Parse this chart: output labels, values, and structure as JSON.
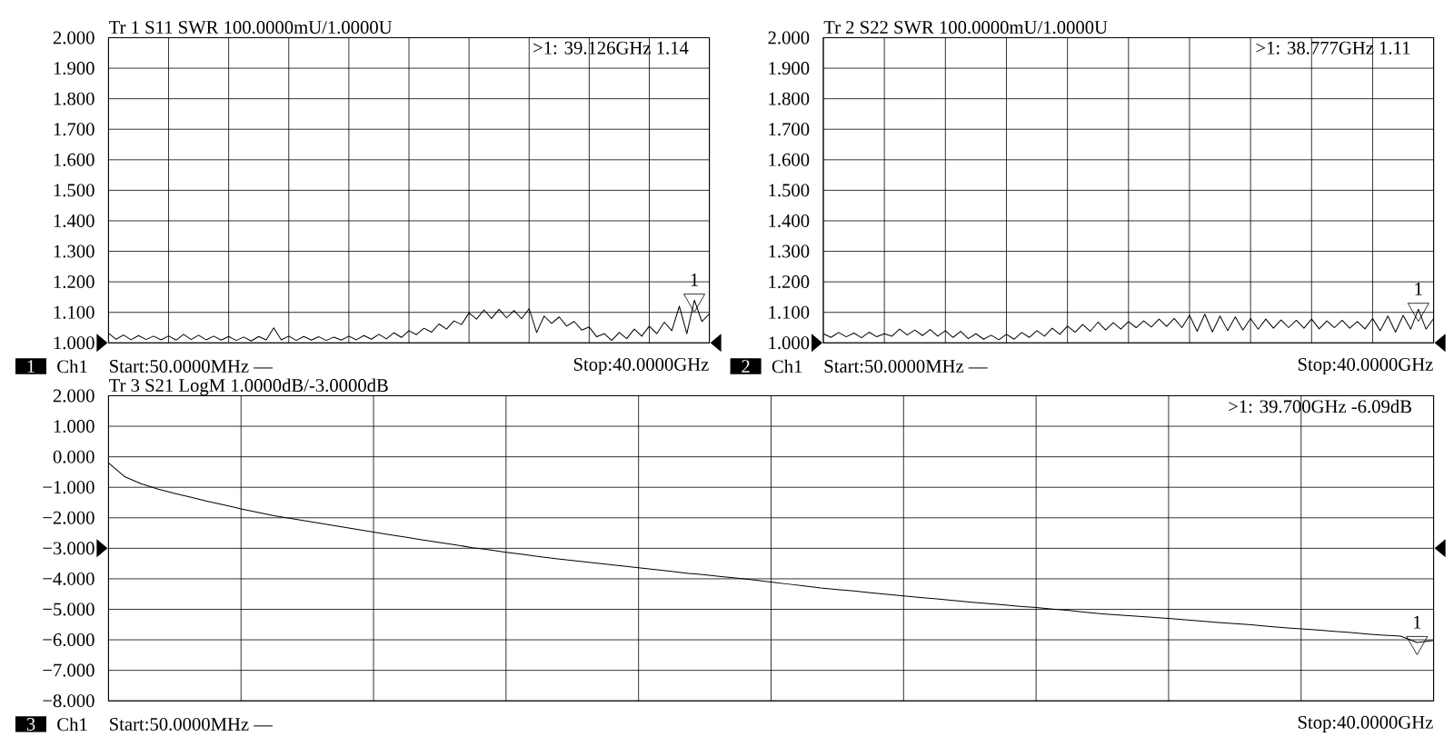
{
  "chart_data": [
    {
      "type": "line",
      "title": "Tr 1 S11 SWR 100.0000mU/1.0000U",
      "categories": [
        null,
        null,
        null,
        null,
        null,
        null,
        null,
        null,
        null,
        null,
        null,
        null,
        null,
        null,
        null,
        null,
        null,
        null,
        null,
        null,
        null,
        null,
        null,
        null,
        null,
        null,
        null,
        null,
        null,
        null,
        null,
        null,
        null,
        null,
        null,
        null,
        null,
        null,
        null,
        null,
        null,
        null,
        null,
        null,
        null,
        null,
        null,
        null,
        null,
        null,
        null,
        null,
        null,
        null,
        null,
        null,
        null,
        null,
        null,
        null,
        null,
        null,
        null,
        null,
        null,
        null,
        null,
        null,
        null,
        null,
        null,
        null,
        null,
        null,
        null,
        null,
        null,
        null,
        null,
        null,
        null
      ],
      "series": [
        {
          "color": "#000000",
          "values": [
            1.032,
            1.012,
            1.026,
            1.01,
            1.024,
            1.011,
            1.022,
            1.01,
            1.023,
            1.009,
            1.028,
            1.011,
            1.025,
            1.01,
            1.022,
            1.009,
            1.021,
            1.008,
            1.019,
            1.006,
            1.021,
            1.01,
            1.049,
            1.01,
            1.022,
            1.008,
            1.021,
            1.009,
            1.02,
            1.008,
            1.019,
            1.009,
            1.022,
            1.01,
            1.024,
            1.012,
            1.028,
            1.013,
            1.033,
            1.018,
            1.04,
            1.027,
            1.048,
            1.035,
            1.062,
            1.045,
            1.072,
            1.06,
            1.098,
            1.078,
            1.108,
            1.08,
            1.11,
            1.082,
            1.106,
            1.079,
            1.112,
            1.034,
            1.088,
            1.064,
            1.085,
            1.055,
            1.07,
            1.042,
            1.052,
            1.02,
            1.03,
            1.008,
            1.034,
            1.014,
            1.045,
            1.022,
            1.055,
            1.03,
            1.068,
            1.04,
            1.12,
            1.03,
            1.14,
            1.07,
            1.095
          ]
        },
        {
          "type": "scatter",
          "name": "1",
          "color": "#000000",
          "marker": "triangle",
          "values": [
            null,
            null,
            null,
            null,
            null,
            null,
            null,
            null,
            null,
            null,
            null,
            null,
            null,
            null,
            null,
            null,
            null,
            null,
            null,
            null,
            null,
            null,
            null,
            null,
            null,
            null,
            null,
            null,
            null,
            null,
            null,
            null,
            null,
            null,
            null,
            null,
            null,
            null,
            null,
            null,
            null,
            null,
            null,
            null,
            null,
            null,
            null,
            null,
            null,
            null,
            null,
            null,
            null,
            null,
            null,
            null,
            null,
            null,
            null,
            null,
            null,
            null,
            null,
            null,
            null,
            null,
            null,
            null,
            null,
            null,
            null,
            null,
            null,
            null,
            null,
            null,
            null,
            null,
            1.14,
            null,
            null
          ]
        }
      ],
      "ylim": [
        1,
        2
      ],
      "yticks": [
        {
          "value": 1,
          "label": "1.000"
        },
        {
          "value": 1.1,
          "label": "1.100"
        },
        {
          "value": 1.2,
          "label": "1.200"
        },
        {
          "value": 1.3,
          "label": "1.300"
        },
        {
          "value": 1.4,
          "label": "1.400"
        },
        {
          "value": 1.5,
          "label": "1.500"
        },
        {
          "value": 1.6,
          "label": "1.600"
        },
        {
          "value": 1.7,
          "label": "1.700"
        },
        {
          "value": 1.8,
          "label": "1.800"
        },
        {
          "value": 1.9,
          "label": "1.900"
        },
        {
          "value": 2,
          "label": "2.000"
        }
      ],
      "grid": true,
      "tick_labels": "y",
      "annotations": [
        ">1: 39.126GHz 1.14",
        "1",
        "Ch1",
        "Start:50.0000MHz —",
        "Stop:40.0000GHz"
      ]
    },
    {
      "type": "line",
      "title": "Tr 2 S22 SWR 100.0000mU/1.0000U",
      "categories": [
        null,
        null,
        null,
        null,
        null,
        null,
        null,
        null,
        null,
        null,
        null,
        null,
        null,
        null,
        null,
        null,
        null,
        null,
        null,
        null,
        null,
        null,
        null,
        null,
        null,
        null,
        null,
        null,
        null,
        null,
        null,
        null,
        null,
        null,
        null,
        null,
        null,
        null,
        null,
        null,
        null,
        null,
        null,
        null,
        null,
        null,
        null,
        null,
        null,
        null,
        null,
        null,
        null,
        null,
        null,
        null,
        null,
        null,
        null,
        null,
        null,
        null,
        null,
        null,
        null,
        null,
        null,
        null,
        null,
        null,
        null,
        null,
        null,
        null,
        null,
        null,
        null,
        null,
        null,
        null,
        null
      ],
      "series": [
        {
          "color": "#000000",
          "values": [
            1.03,
            1.018,
            1.034,
            1.02,
            1.032,
            1.017,
            1.035,
            1.02,
            1.03,
            1.022,
            1.045,
            1.026,
            1.042,
            1.024,
            1.044,
            1.022,
            1.04,
            1.018,
            1.038,
            1.014,
            1.03,
            1.012,
            1.025,
            1.01,
            1.028,
            1.012,
            1.034,
            1.018,
            1.04,
            1.022,
            1.048,
            1.028,
            1.055,
            1.035,
            1.06,
            1.038,
            1.068,
            1.042,
            1.066,
            1.045,
            1.07,
            1.05,
            1.072,
            1.052,
            1.078,
            1.054,
            1.08,
            1.05,
            1.09,
            1.038,
            1.094,
            1.036,
            1.088,
            1.04,
            1.085,
            1.042,
            1.08,
            1.045,
            1.078,
            1.048,
            1.075,
            1.05,
            1.074,
            1.048,
            1.078,
            1.046,
            1.072,
            1.05,
            1.074,
            1.048,
            1.07,
            1.046,
            1.08,
            1.04,
            1.088,
            1.035,
            1.09,
            1.045,
            1.11,
            1.045,
            1.08
          ]
        },
        {
          "type": "scatter",
          "name": "1",
          "color": "#000000",
          "marker": "triangle",
          "values": [
            null,
            null,
            null,
            null,
            null,
            null,
            null,
            null,
            null,
            null,
            null,
            null,
            null,
            null,
            null,
            null,
            null,
            null,
            null,
            null,
            null,
            null,
            null,
            null,
            null,
            null,
            null,
            null,
            null,
            null,
            null,
            null,
            null,
            null,
            null,
            null,
            null,
            null,
            null,
            null,
            null,
            null,
            null,
            null,
            null,
            null,
            null,
            null,
            null,
            null,
            null,
            null,
            null,
            null,
            null,
            null,
            null,
            null,
            null,
            null,
            null,
            null,
            null,
            null,
            null,
            null,
            null,
            null,
            null,
            null,
            null,
            null,
            null,
            null,
            null,
            null,
            null,
            null,
            1.11,
            null,
            null
          ]
        }
      ],
      "ylim": [
        1,
        2
      ],
      "yticks": [
        {
          "value": 1,
          "label": "1.000"
        },
        {
          "value": 1.1,
          "label": "1.100"
        },
        {
          "value": 1.2,
          "label": "1.200"
        },
        {
          "value": 1.3,
          "label": "1.300"
        },
        {
          "value": 1.4,
          "label": "1.400"
        },
        {
          "value": 1.5,
          "label": "1.500"
        },
        {
          "value": 1.6,
          "label": "1.600"
        },
        {
          "value": 1.7,
          "label": "1.700"
        },
        {
          "value": 1.8,
          "label": "1.800"
        },
        {
          "value": 1.9,
          "label": "1.900"
        },
        {
          "value": 2,
          "label": "2.000"
        }
      ],
      "grid": true,
      "tick_labels": "y",
      "annotations": [
        ">1: 38.777GHz 1.11",
        "2",
        "Ch1",
        "Start:50.0000MHz —",
        "Stop:40.0000GHz"
      ]
    },
    {
      "type": "line",
      "title": "Tr 3 S21 LogM 1.0000dB/-3.0000dB",
      "categories": [
        null,
        null,
        null,
        null,
        null,
        null,
        null,
        null,
        null,
        null,
        null,
        null,
        null,
        null,
        null,
        null,
        null,
        null,
        null,
        null,
        null,
        null,
        null,
        null,
        null,
        null,
        null,
        null,
        null,
        null,
        null,
        null,
        null,
        null,
        null,
        null,
        null,
        null,
        null,
        null,
        null,
        null,
        null,
        null,
        null,
        null,
        null,
        null,
        null,
        null,
        null,
        null,
        null,
        null,
        null,
        null,
        null,
        null,
        null,
        null,
        null,
        null,
        null,
        null,
        null,
        null,
        null,
        null,
        null,
        null,
        null,
        null,
        null,
        null,
        null,
        null,
        null,
        null,
        null,
        null,
        null
      ],
      "series": [
        {
          "color": "#000000",
          "values": [
            -0.2,
            -0.66,
            -0.89,
            -1.06,
            -1.2,
            -1.33,
            -1.46,
            -1.58,
            -1.71,
            -1.82,
            -1.93,
            -2.02,
            -2.11,
            -2.2,
            -2.29,
            -2.38,
            -2.47,
            -2.56,
            -2.64,
            -2.73,
            -2.81,
            -2.89,
            -2.98,
            -3.05,
            -3.13,
            -3.2,
            -3.27,
            -3.34,
            -3.4,
            -3.46,
            -3.52,
            -3.58,
            -3.64,
            -3.7,
            -3.76,
            -3.82,
            -3.87,
            -3.93,
            -3.98,
            -4.04,
            -4.11,
            -4.17,
            -4.23,
            -4.3,
            -4.35,
            -4.4,
            -4.46,
            -4.51,
            -4.56,
            -4.61,
            -4.66,
            -4.71,
            -4.76,
            -4.81,
            -4.85,
            -4.9,
            -4.94,
            -4.99,
            -5.04,
            -5.1,
            -5.15,
            -5.19,
            -5.22,
            -5.26,
            -5.3,
            -5.34,
            -5.39,
            -5.43,
            -5.47,
            -5.51,
            -5.56,
            -5.6,
            -5.64,
            -5.68,
            -5.72,
            -5.76,
            -5.81,
            -5.85,
            -5.88,
            -6.09,
            -6.02
          ]
        },
        {
          "type": "scatter",
          "name": "1",
          "color": "#000000",
          "marker": "triangle",
          "values": [
            null,
            null,
            null,
            null,
            null,
            null,
            null,
            null,
            null,
            null,
            null,
            null,
            null,
            null,
            null,
            null,
            null,
            null,
            null,
            null,
            null,
            null,
            null,
            null,
            null,
            null,
            null,
            null,
            null,
            null,
            null,
            null,
            null,
            null,
            null,
            null,
            null,
            null,
            null,
            null,
            null,
            null,
            null,
            null,
            null,
            null,
            null,
            null,
            null,
            null,
            null,
            null,
            null,
            null,
            null,
            null,
            null,
            null,
            null,
            null,
            null,
            null,
            null,
            null,
            null,
            null,
            null,
            null,
            null,
            null,
            null,
            null,
            null,
            null,
            null,
            null,
            null,
            null,
            null,
            -6.09,
            null
          ]
        }
      ],
      "ylim": [
        -8,
        2
      ],
      "yticks": [
        {
          "value": -8,
          "label": "−8.000"
        },
        {
          "value": -7,
          "label": "−7.000"
        },
        {
          "value": -6,
          "label": "−6.000"
        },
        {
          "value": -5,
          "label": "−5.000"
        },
        {
          "value": -4,
          "label": "−4.000"
        },
        {
          "value": -3,
          "label": "−3.000"
        },
        {
          "value": -2,
          "label": "−2.000"
        },
        {
          "value": -1,
          "label": "−1.000"
        },
        {
          "value": 0,
          "label": "0.000"
        },
        {
          "value": 1,
          "label": "1.000"
        },
        {
          "value": 2,
          "label": "2.000"
        }
      ],
      "grid": true,
      "tick_labels": "y",
      "annotations": [
        ">1: 39.700GHz -6.09dB",
        "3",
        "Ch1",
        "Start:50.0000MHz —",
        "Stop:40.0000GHz"
      ]
    }
  ]
}
